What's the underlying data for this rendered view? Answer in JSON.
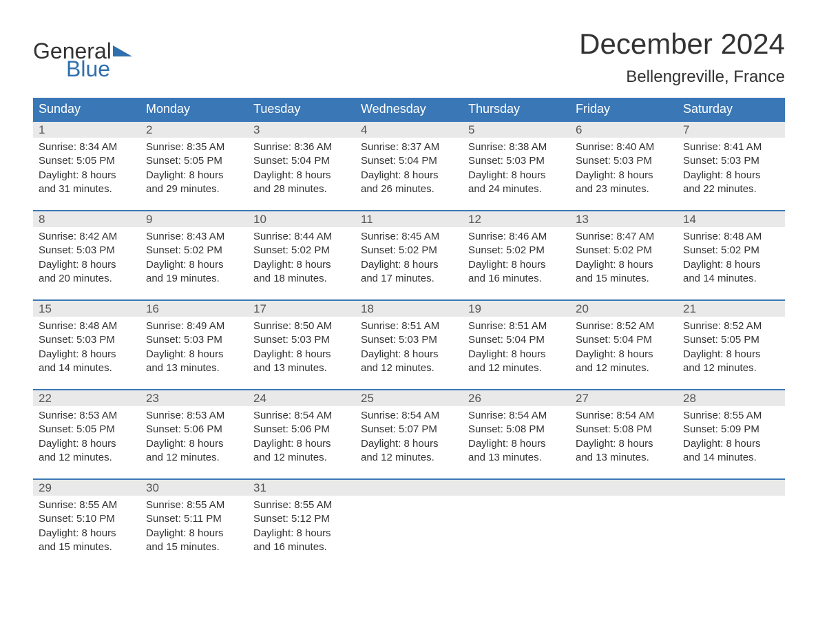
{
  "logo": {
    "text_general": "General",
    "text_blue": "Blue",
    "flag_color": "#2f6fad"
  },
  "header": {
    "month_title": "December 2024",
    "location": "Bellengreville, France"
  },
  "colors": {
    "header_bg": "#3a77b6",
    "header_text": "#ffffff",
    "daynum_bg": "#e9e9e9",
    "week_border": "#3a77b6",
    "body_text": "#333333",
    "background": "#ffffff"
  },
  "fonts": {
    "title_size_pt": 32,
    "location_size_pt": 18,
    "weekday_size_pt": 14,
    "body_size_pt": 11
  },
  "weekdays": [
    "Sunday",
    "Monday",
    "Tuesday",
    "Wednesday",
    "Thursday",
    "Friday",
    "Saturday"
  ],
  "weeks": [
    [
      {
        "day": "1",
        "sunrise": "Sunrise: 8:34 AM",
        "sunset": "Sunset: 5:05 PM",
        "dl1": "Daylight: 8 hours",
        "dl2": "and 31 minutes."
      },
      {
        "day": "2",
        "sunrise": "Sunrise: 8:35 AM",
        "sunset": "Sunset: 5:05 PM",
        "dl1": "Daylight: 8 hours",
        "dl2": "and 29 minutes."
      },
      {
        "day": "3",
        "sunrise": "Sunrise: 8:36 AM",
        "sunset": "Sunset: 5:04 PM",
        "dl1": "Daylight: 8 hours",
        "dl2": "and 28 minutes."
      },
      {
        "day": "4",
        "sunrise": "Sunrise: 8:37 AM",
        "sunset": "Sunset: 5:04 PM",
        "dl1": "Daylight: 8 hours",
        "dl2": "and 26 minutes."
      },
      {
        "day": "5",
        "sunrise": "Sunrise: 8:38 AM",
        "sunset": "Sunset: 5:03 PM",
        "dl1": "Daylight: 8 hours",
        "dl2": "and 24 minutes."
      },
      {
        "day": "6",
        "sunrise": "Sunrise: 8:40 AM",
        "sunset": "Sunset: 5:03 PM",
        "dl1": "Daylight: 8 hours",
        "dl2": "and 23 minutes."
      },
      {
        "day": "7",
        "sunrise": "Sunrise: 8:41 AM",
        "sunset": "Sunset: 5:03 PM",
        "dl1": "Daylight: 8 hours",
        "dl2": "and 22 minutes."
      }
    ],
    [
      {
        "day": "8",
        "sunrise": "Sunrise: 8:42 AM",
        "sunset": "Sunset: 5:03 PM",
        "dl1": "Daylight: 8 hours",
        "dl2": "and 20 minutes."
      },
      {
        "day": "9",
        "sunrise": "Sunrise: 8:43 AM",
        "sunset": "Sunset: 5:02 PM",
        "dl1": "Daylight: 8 hours",
        "dl2": "and 19 minutes."
      },
      {
        "day": "10",
        "sunrise": "Sunrise: 8:44 AM",
        "sunset": "Sunset: 5:02 PM",
        "dl1": "Daylight: 8 hours",
        "dl2": "and 18 minutes."
      },
      {
        "day": "11",
        "sunrise": "Sunrise: 8:45 AM",
        "sunset": "Sunset: 5:02 PM",
        "dl1": "Daylight: 8 hours",
        "dl2": "and 17 minutes."
      },
      {
        "day": "12",
        "sunrise": "Sunrise: 8:46 AM",
        "sunset": "Sunset: 5:02 PM",
        "dl1": "Daylight: 8 hours",
        "dl2": "and 16 minutes."
      },
      {
        "day": "13",
        "sunrise": "Sunrise: 8:47 AM",
        "sunset": "Sunset: 5:02 PM",
        "dl1": "Daylight: 8 hours",
        "dl2": "and 15 minutes."
      },
      {
        "day": "14",
        "sunrise": "Sunrise: 8:48 AM",
        "sunset": "Sunset: 5:02 PM",
        "dl1": "Daylight: 8 hours",
        "dl2": "and 14 minutes."
      }
    ],
    [
      {
        "day": "15",
        "sunrise": "Sunrise: 8:48 AM",
        "sunset": "Sunset: 5:03 PM",
        "dl1": "Daylight: 8 hours",
        "dl2": "and 14 minutes."
      },
      {
        "day": "16",
        "sunrise": "Sunrise: 8:49 AM",
        "sunset": "Sunset: 5:03 PM",
        "dl1": "Daylight: 8 hours",
        "dl2": "and 13 minutes."
      },
      {
        "day": "17",
        "sunrise": "Sunrise: 8:50 AM",
        "sunset": "Sunset: 5:03 PM",
        "dl1": "Daylight: 8 hours",
        "dl2": "and 13 minutes."
      },
      {
        "day": "18",
        "sunrise": "Sunrise: 8:51 AM",
        "sunset": "Sunset: 5:03 PM",
        "dl1": "Daylight: 8 hours",
        "dl2": "and 12 minutes."
      },
      {
        "day": "19",
        "sunrise": "Sunrise: 8:51 AM",
        "sunset": "Sunset: 5:04 PM",
        "dl1": "Daylight: 8 hours",
        "dl2": "and 12 minutes."
      },
      {
        "day": "20",
        "sunrise": "Sunrise: 8:52 AM",
        "sunset": "Sunset: 5:04 PM",
        "dl1": "Daylight: 8 hours",
        "dl2": "and 12 minutes."
      },
      {
        "day": "21",
        "sunrise": "Sunrise: 8:52 AM",
        "sunset": "Sunset: 5:05 PM",
        "dl1": "Daylight: 8 hours",
        "dl2": "and 12 minutes."
      }
    ],
    [
      {
        "day": "22",
        "sunrise": "Sunrise: 8:53 AM",
        "sunset": "Sunset: 5:05 PM",
        "dl1": "Daylight: 8 hours",
        "dl2": "and 12 minutes."
      },
      {
        "day": "23",
        "sunrise": "Sunrise: 8:53 AM",
        "sunset": "Sunset: 5:06 PM",
        "dl1": "Daylight: 8 hours",
        "dl2": "and 12 minutes."
      },
      {
        "day": "24",
        "sunrise": "Sunrise: 8:54 AM",
        "sunset": "Sunset: 5:06 PM",
        "dl1": "Daylight: 8 hours",
        "dl2": "and 12 minutes."
      },
      {
        "day": "25",
        "sunrise": "Sunrise: 8:54 AM",
        "sunset": "Sunset: 5:07 PM",
        "dl1": "Daylight: 8 hours",
        "dl2": "and 12 minutes."
      },
      {
        "day": "26",
        "sunrise": "Sunrise: 8:54 AM",
        "sunset": "Sunset: 5:08 PM",
        "dl1": "Daylight: 8 hours",
        "dl2": "and 13 minutes."
      },
      {
        "day": "27",
        "sunrise": "Sunrise: 8:54 AM",
        "sunset": "Sunset: 5:08 PM",
        "dl1": "Daylight: 8 hours",
        "dl2": "and 13 minutes."
      },
      {
        "day": "28",
        "sunrise": "Sunrise: 8:55 AM",
        "sunset": "Sunset: 5:09 PM",
        "dl1": "Daylight: 8 hours",
        "dl2": "and 14 minutes."
      }
    ],
    [
      {
        "day": "29",
        "sunrise": "Sunrise: 8:55 AM",
        "sunset": "Sunset: 5:10 PM",
        "dl1": "Daylight: 8 hours",
        "dl2": "and 15 minutes."
      },
      {
        "day": "30",
        "sunrise": "Sunrise: 8:55 AM",
        "sunset": "Sunset: 5:11 PM",
        "dl1": "Daylight: 8 hours",
        "dl2": "and 15 minutes."
      },
      {
        "day": "31",
        "sunrise": "Sunrise: 8:55 AM",
        "sunset": "Sunset: 5:12 PM",
        "dl1": "Daylight: 8 hours",
        "dl2": "and 16 minutes."
      },
      null,
      null,
      null,
      null
    ]
  ]
}
